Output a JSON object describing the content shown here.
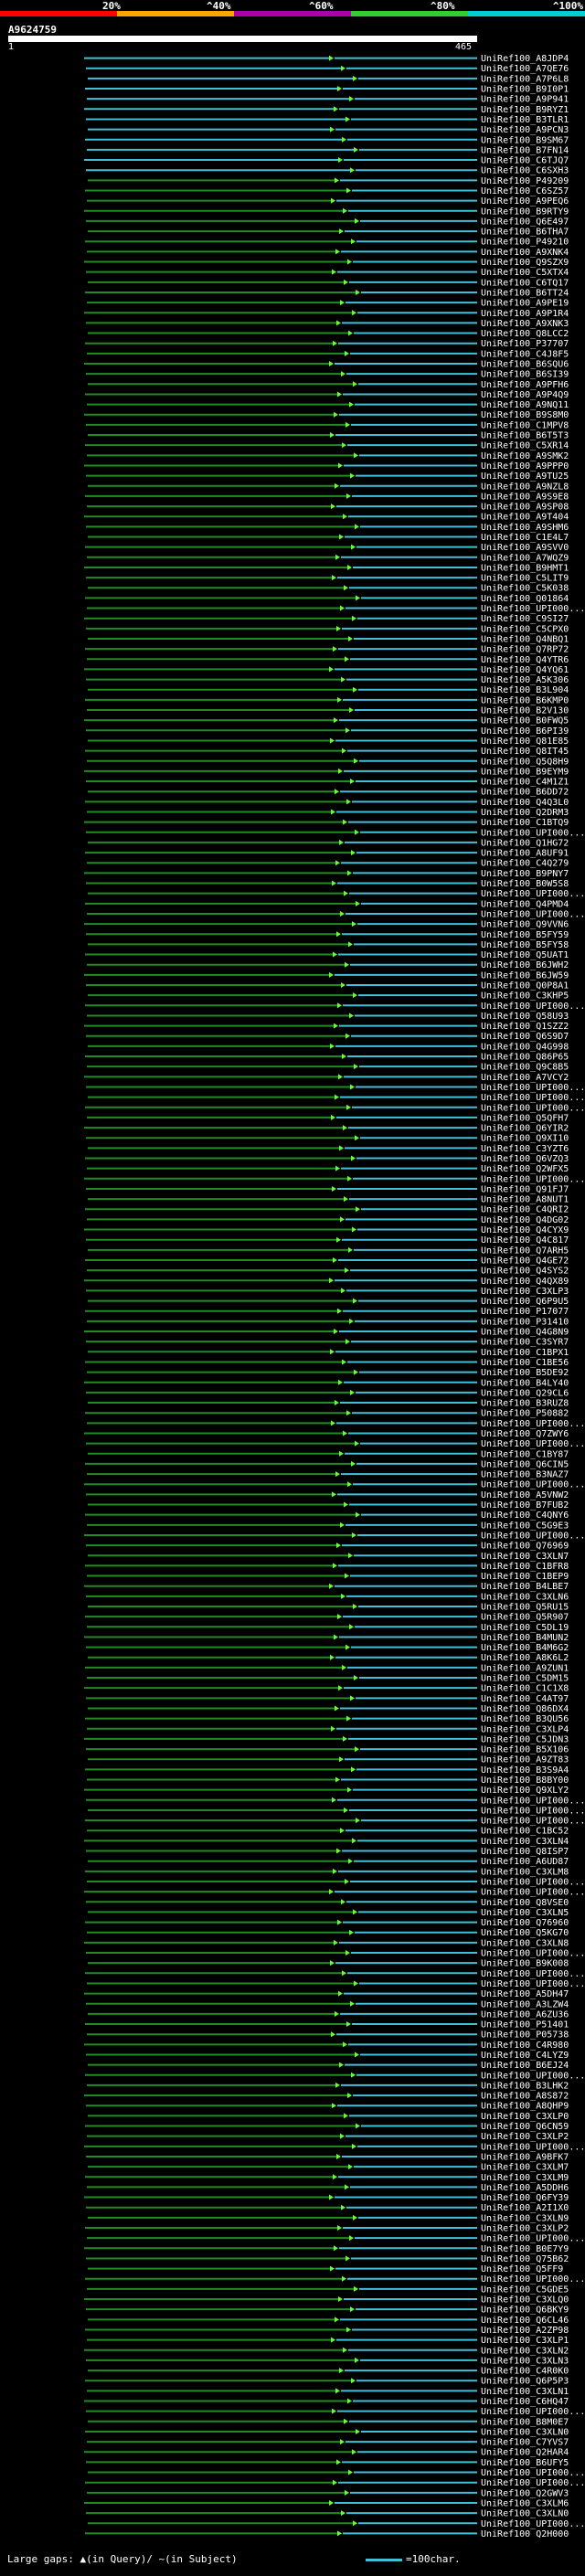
{
  "header": {
    "percent_labels": [
      "20%",
      "^40%",
      "^60%",
      "^80%",
      "^100%"
    ],
    "bar_colors": [
      "#ff0000",
      "#ffa500",
      "#a0a",
      "#32cd32",
      "#00ced1"
    ],
    "query_id": "A9624759",
    "range_start": "1",
    "range_end": "465"
  },
  "colors": {
    "cyan_hit": "#3fc1d8",
    "green_hit": "#228b22",
    "green_bright": "#66ff33",
    "background": "#000000"
  },
  "footer": {
    "legend_text": "Large gaps: ▲(in Query)/ ~(in Subject)",
    "scale_text": "=100char."
  },
  "hits": [
    "UniRef100_A8JDP4",
    "UniRef100_A7QE76",
    "UniRef100_A7P6L8",
    "UniRef100_B9I0P1",
    "UniRef100_A9P941",
    "UniRef100_B9RYZ1",
    "UniRef100_B3TLR1",
    "UniRef100_A9PCN3",
    "UniRef100_B9SM67",
    "UniRef100_B7FN14",
    "UniRef100_C6TJQ7",
    "UniRef100_C6SXH3",
    "UniRef100_P49209",
    "UniRef100_C6SZ57",
    "UniRef100_A9PEQ6",
    "UniRef100_B9RTY9",
    "UniRef100_Q6E497",
    "UniRef100_B6THA7",
    "UniRef100_P49210",
    "UniRef100_A9XNK4",
    "UniRef100_Q9SZX9",
    "UniRef100_C5XTX4",
    "UniRef100_C6TQ17",
    "UniRef100_B6TT24",
    "UniRef100_A9PE19",
    "UniRef100_A9P1R4",
    "UniRef100_A9XNK3",
    "UniRef100_Q8LCC2",
    "UniRef100_P37707",
    "UniRef100_C4J8F5",
    "UniRef100_B6SQU6",
    "UniRef100_B6SI39",
    "UniRef100_A9PFH6",
    "UniRef100_A9P4Q9",
    "UniRef100_A9NQ11",
    "UniRef100_B9S8M0",
    "UniRef100_C1MPV8",
    "UniRef100_B6T5T3",
    "UniRef100_C5XR14",
    "UniRef100_A9SMK2",
    "UniRef100_A9PPP0",
    "UniRef100_A9TU25",
    "UniRef100_A9NZL8",
    "UniRef100_A9S9E8",
    "UniRef100_A9SP08",
    "UniRef100_A9T404",
    "UniRef100_A9SHM6",
    "UniRef100_C1E4L7",
    "UniRef100_A9SVV0",
    "UniRef100_A7WQZ9",
    "UniRef100_B9HMT1",
    "UniRef100_C5LIT9",
    "UniRef100_C5K038",
    "UniRef100_Q01864",
    "UniRef100_UPI000...",
    "UniRef100_C9SI27",
    "UniRef100_C5CPX0",
    "UniRef100_Q4NBQ1",
    "UniRef100_Q7RP72",
    "UniRef100_Q4YTR6",
    "UniRef100_Q4YQ61",
    "UniRef100_A5K306",
    "UniRef100_B3L904",
    "UniRef100_B6KMP0",
    "UniRef100_B2V130",
    "UniRef100_B0FWQ5",
    "UniRef100_B6PI39",
    "UniRef100_Q81E85",
    "UniRef100_Q8IT45",
    "UniRef100_Q5Q8H9",
    "UniRef100_B9EYM9",
    "UniRef100_C4M1Z1",
    "UniRef100_B6DD72",
    "UniRef100_Q4Q3L0",
    "UniRef100_Q2DRM3",
    "UniRef100_C1BTQ9",
    "UniRef100_UPI000...",
    "UniRef100_Q1HG72",
    "UniRef100_A8UF91",
    "UniRef100_C4Q279",
    "UniRef100_B9PNY7",
    "UniRef100_B0W5S8",
    "UniRef100_UPI000...",
    "UniRef100_Q4PMD4",
    "UniRef100_UPI000...",
    "UniRef100_Q9VVN6",
    "UniRef100_B5FY59",
    "UniRef100_B5FY58",
    "UniRef100_Q5UAT1",
    "UniRef100_B6JWH2",
    "UniRef100_B6JW59",
    "UniRef100_Q0P8A1",
    "UniRef100_C3KHP5",
    "UniRef100_UPI000...",
    "UniRef100_Q58U93",
    "UniRef100_Q1SZZ2",
    "UniRef100_Q6S9D7",
    "UniRef100_Q4G998",
    "UniRef100_Q86P65",
    "UniRef100_Q9C8B5",
    "UniRef100_A7VCY2",
    "UniRef100_UPI000...",
    "UniRef100_UPI000...",
    "UniRef100_UPI000...",
    "UniRef100_Q5QFH7",
    "UniRef100_Q6YIR2",
    "UniRef100_Q9XI10",
    "UniRef100_C3YZT6",
    "UniRef100_Q6VZQ3",
    "UniRef100_Q2WFX5",
    "UniRef100_UPI000...",
    "UniRef100_Q91FJ7",
    "UniRef100_A8NUT1",
    "UniRef100_C4QRI2",
    "UniRef100_Q4DG02",
    "UniRef100_Q4CYX9",
    "UniRef100_Q4C817",
    "UniRef100_Q7ARH5",
    "UniRef100_Q4GE72",
    "UniRef100_Q4SYS2",
    "UniRef100_Q4QX89",
    "UniRef100_C3XLP3",
    "UniRef100_Q6P9U5",
    "UniRef100_P17077",
    "UniRef100_P31410",
    "UniRef100_Q4G8N9",
    "UniRef100_C3SYR7",
    "UniRef100_C1BPX1",
    "UniRef100_C1BE56",
    "UniRef100_B5DE92",
    "UniRef100_B4LY40",
    "UniRef100_Q29CL6",
    "UniRef100_B3RUZ8",
    "UniRef100_P50882",
    "UniRef100_UPI000...",
    "UniRef100_Q7ZWY6",
    "UniRef100_UPI000...",
    "UniRef100_C1BY87",
    "UniRef100_Q6CIN5",
    "UniRef100_B3NAZ7",
    "UniRef100_UPI000...",
    "UniRef100_A5VNW2",
    "UniRef100_B7FUB2",
    "UniRef100_C4QNY6",
    "UniRef100_C5G9E3",
    "UniRef100_UPI000...",
    "UniRef100_Q76969",
    "UniRef100_C3XLN7",
    "UniRef100_C1BFR8",
    "UniRef100_C1BEP9",
    "UniRef100_B4LBE7",
    "UniRef100_C3XLN6",
    "UniRef100_Q5RU15",
    "UniRef100_Q5R907",
    "UniRef100_C5DL19",
    "UniRef100_B4MUN2",
    "UniRef100_B4M6G2",
    "UniRef100_A8K6L2",
    "UniRef100_A9ZUN1",
    "UniRef100_C5DM15",
    "UniRef100_C1C1X8",
    "UniRef100_C4AT97",
    "UniRef100_Q86DX4",
    "UniRef100_B3QU56",
    "UniRef100_C3XLP4",
    "UniRef100_C5JDN3",
    "UniRef100_B5X106",
    "UniRef100_A9ZT83",
    "UniRef100_B3S9A4",
    "UniRef100_B8BY00",
    "UniRef100_Q9XLY2",
    "UniRef100_UPI000...",
    "UniRef100_UPI000...",
    "UniRef100_UPI000...",
    "UniRef100_C1BC52",
    "UniRef100_C3XLN4",
    "UniRef100_Q8ISP7",
    "UniRef100_A6UD87",
    "UniRef100_C3XLM8",
    "UniRef100_UPI000...",
    "UniRef100_UPI000...",
    "UniRef100_Q8VSE0",
    "UniRef100_C3XLN5",
    "UniRef100_Q76960",
    "UniRef100_Q5KG70",
    "UniRef100_C3XLN8",
    "UniRef100_UPI000...",
    "UniRef100_B9K008",
    "UniRef100_UPI000...",
    "UniRef100_UPI000...",
    "UniRef100_A5DH47",
    "UniRef100_A3LZW4",
    "UniRef100_A6ZU36",
    "UniRef100_P51401",
    "UniRef100_P05738",
    "UniRef100_C4R980",
    "UniRef100_C4LYZ9",
    "UniRef100_B6EJ24",
    "UniRef100_UPI000...",
    "UniRef100_B3LHK2",
    "UniRef100_A8S872",
    "UniRef100_A8QHP9",
    "UniRef100_C3XLP0",
    "UniRef100_Q6CN59",
    "UniRef100_C3XLP2",
    "UniRef100_UPI000...",
    "UniRef100_A9BFK7",
    "UniRef100_C3XLM7",
    "UniRef100_C3XLM9",
    "UniRef100_A5DDH6",
    "UniRef100_Q6FY39",
    "UniRef100_A2I1X0",
    "UniRef100_C3XLN9",
    "UniRef100_C3XLP2",
    "UniRef100_UPI000...",
    "UniRef100_B0E7Y9",
    "UniRef100_Q75B62",
    "UniRef100_Q5FF9",
    "UniRef100_UPI000...",
    "UniRef100_C5GDE5",
    "UniRef100_C3XLQ0",
    "UniRef100_Q6BKY9",
    "UniRef100_Q6CL46",
    "UniRef100_A2ZP98",
    "UniRef100_C3XLP1",
    "UniRef100_C3XLN2",
    "UniRef100_C3XLN3",
    "UniRef100_C4R0K0",
    "UniRef100_Q6P5P3",
    "UniRef100_C3XLN1",
    "UniRef100_C6HQ47",
    "UniRef100_UPI000...",
    "UniRef100_B8M0E7",
    "UniRef100_C3XLN0",
    "UniRef100_C7YVS7",
    "UniRef100_Q2HAR4",
    "UniRef100_B6UFY5",
    "UniRef100_UPI000...",
    "UniRef100_UPI000...",
    "UniRef100_Q2GWV3",
    "UniRef100_C3XLM6",
    "UniRef100_C3XLN0",
    "UniRef100_UPI000...",
    "UniRef100_Q2H000"
  ]
}
